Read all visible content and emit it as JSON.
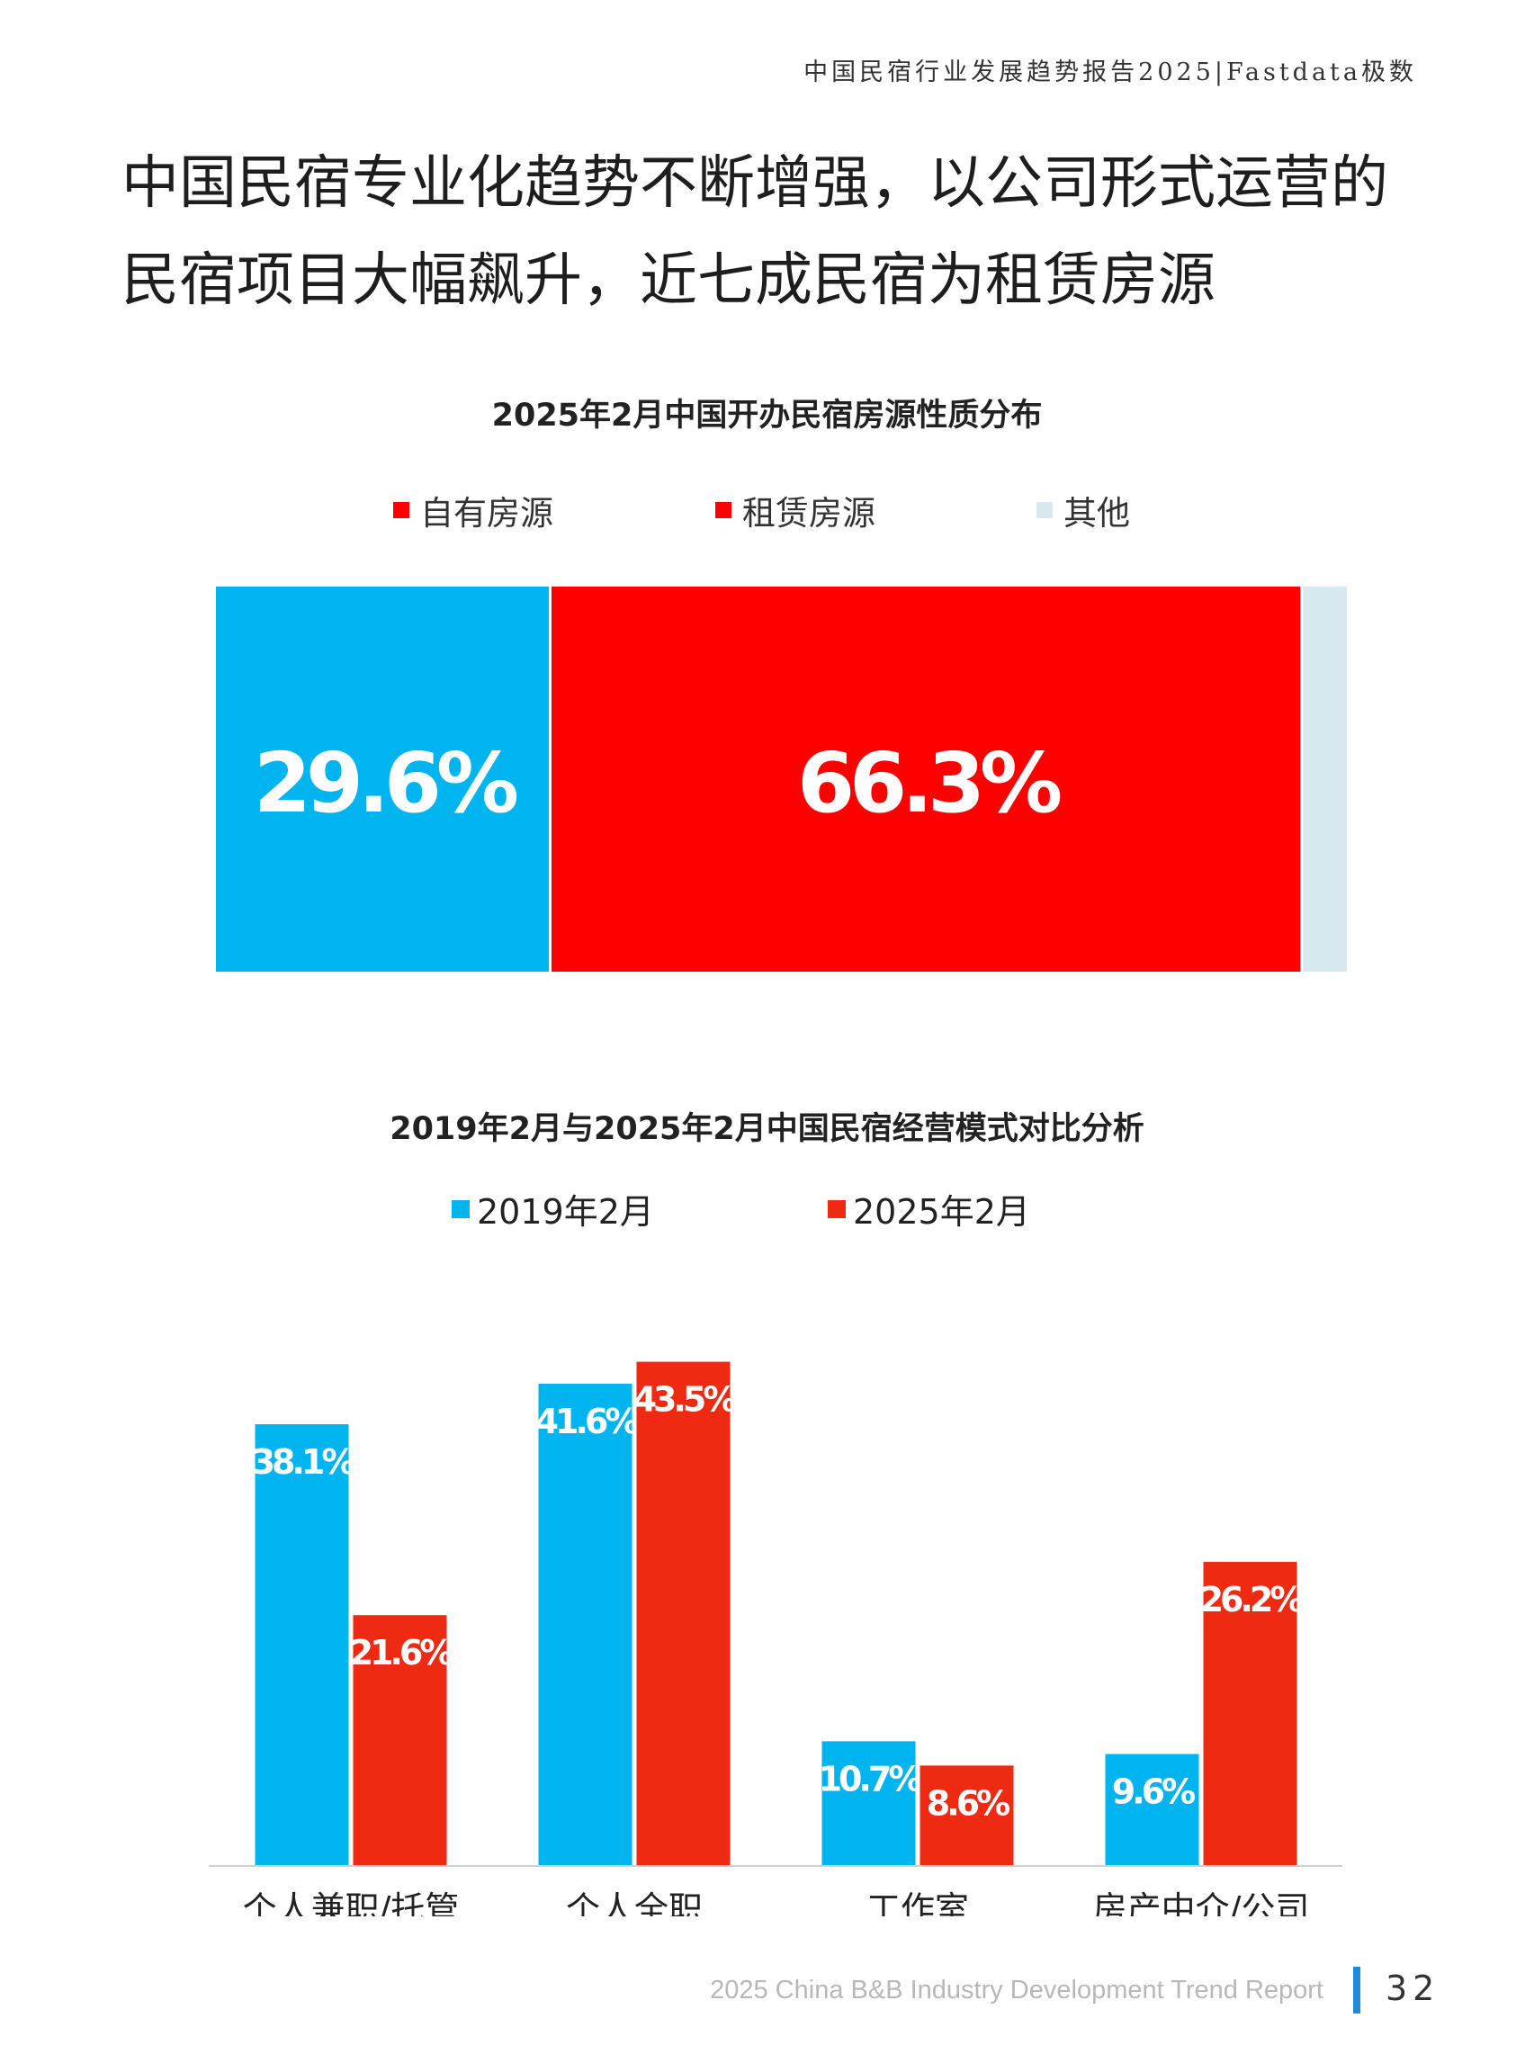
{
  "header": {
    "report_title": "中国民宿行业发展趋势报告2025|Fastdata极数"
  },
  "headline": {
    "line1": "中国民宿专业化趋势不断增强，以公司形式运营的",
    "line2": "民宿项目大幅飙升，近七成民宿为租赁房源"
  },
  "colors": {
    "blue": "#00b4f0",
    "red": "#ff0000",
    "red2": "#ee2a12",
    "other": "#d8e9ef",
    "footer_accent": "#1f8ad8"
  },
  "chart_data": [
    {
      "type": "bar",
      "stacked": true,
      "orientation": "horizontal",
      "title": "2025年2月中国开办民宿房源性质分布",
      "legend": {
        "placement": "top"
      },
      "series": [
        {
          "name": "自有房源",
          "value": 29.6,
          "label": "29.6%",
          "color": "#00b4f0",
          "legend_color": "#ff0000"
        },
        {
          "name": "租赁房源",
          "value": 66.3,
          "label": "66.3%",
          "color": "#ff0000",
          "legend_color": "#ff0000"
        },
        {
          "name": "其他",
          "value": 4.1,
          "label": "",
          "color": "#d8e9ef",
          "legend_color": "#d8e9ef"
        }
      ]
    },
    {
      "type": "bar",
      "title": "2019年2月与2025年2月中国民宿经营模式对比分析",
      "legend": {
        "placement": "top"
      },
      "categories": [
        "个人兼职/托管",
        "个人全职",
        "工作室",
        "房产中介/公司"
      ],
      "ylim": [
        0,
        50
      ],
      "grid": false,
      "series": [
        {
          "name": "2019年2月",
          "color": "#00b4f0",
          "values": [
            38.1,
            41.6,
            10.7,
            9.6
          ],
          "labels": [
            "38.1%",
            "41.6%",
            "10.7%",
            "9.6%"
          ]
        },
        {
          "name": "2025年2月",
          "color": "#ee2a12",
          "values": [
            21.6,
            43.5,
            8.6,
            26.2
          ],
          "labels": [
            "21.6%",
            "43.5%",
            "8.6%",
            "26.2%"
          ]
        }
      ]
    }
  ],
  "footer": {
    "report_en": "2025 China B&B Industry Development Trend Report",
    "page_number": "32"
  }
}
